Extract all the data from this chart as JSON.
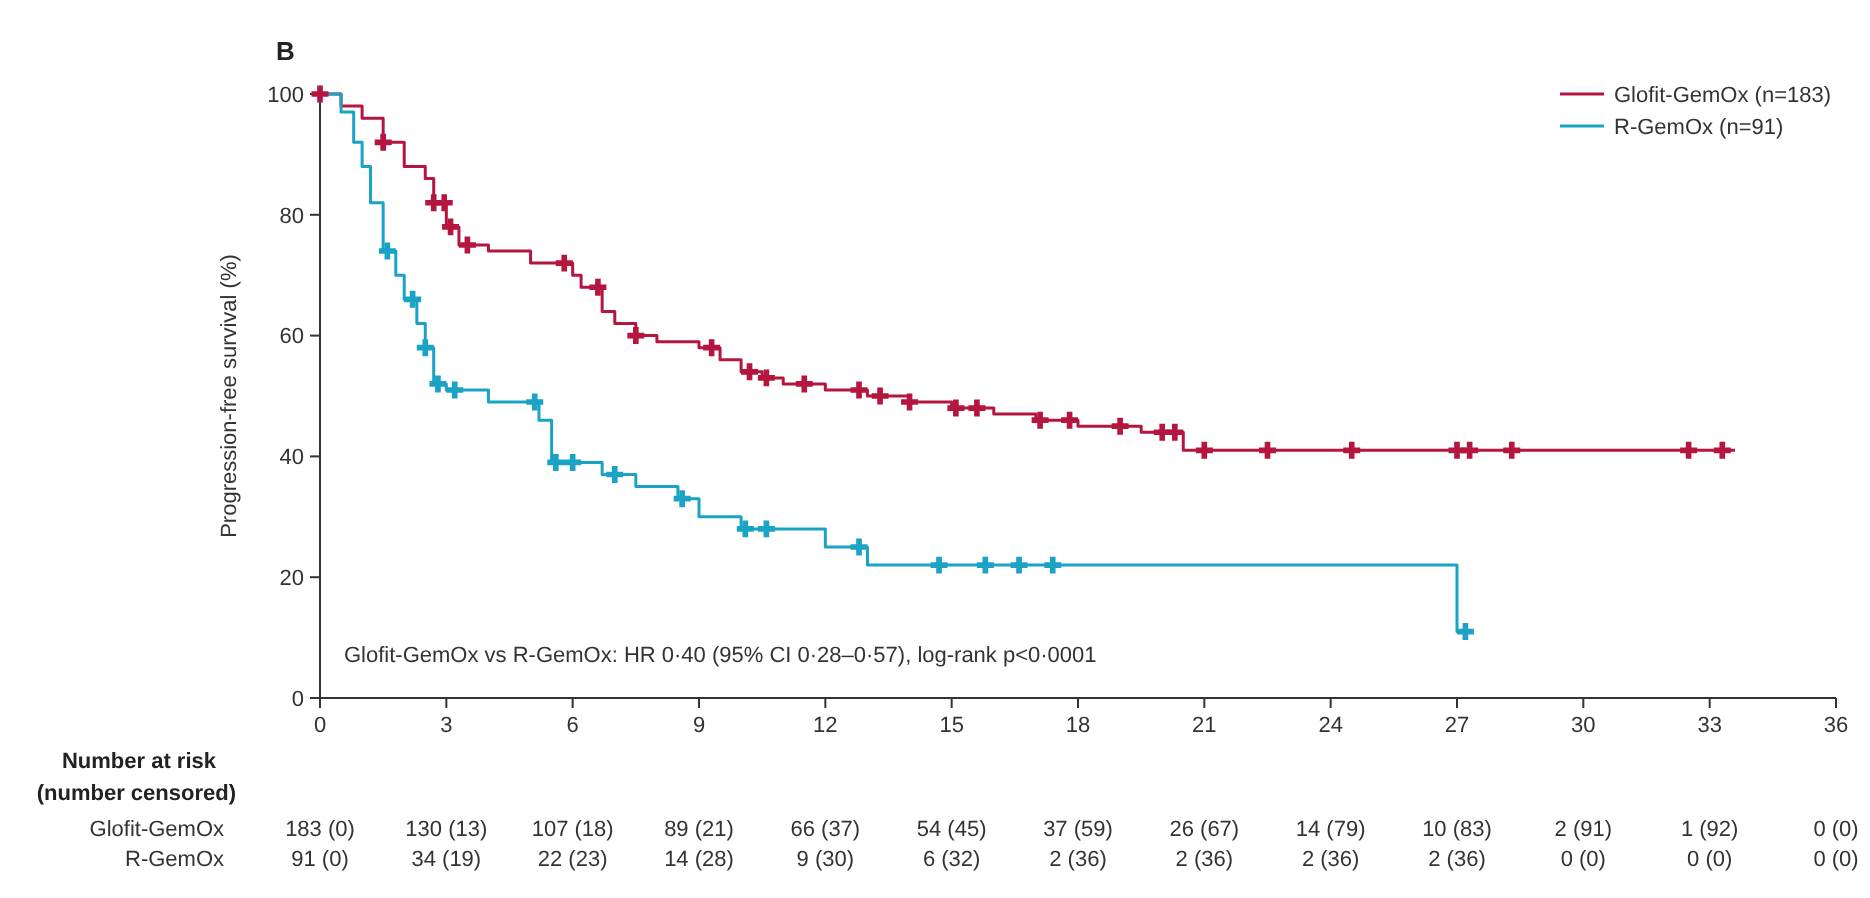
{
  "chart_data": {
    "type": "step",
    "title": "B",
    "ylabel": "Progression-free survival (%)",
    "xlim": [
      0,
      36
    ],
    "xticks": [
      0,
      3,
      6,
      9,
      12,
      15,
      18,
      21,
      24,
      27,
      30,
      33,
      36
    ],
    "ylim": [
      0,
      100
    ],
    "yticks": [
      0,
      20,
      40,
      60,
      80,
      100
    ],
    "grid": false,
    "legend": "top right",
    "line_style": "solid",
    "series": [
      {
        "name": "Glofit-GemOx (n=183)",
        "color": "#b5163f",
        "x": [
          0,
          0.5,
          1,
          1.5,
          2,
          2.5,
          2.7,
          3,
          3.3,
          4,
          5,
          6,
          6.2,
          6.7,
          7,
          7.5,
          8,
          9,
          9.5,
          10,
          10.5,
          11,
          12,
          13,
          14,
          15,
          16,
          17,
          18,
          19.5,
          20.5,
          33.6
        ],
        "values": [
          100,
          98,
          96,
          92,
          88,
          86,
          82,
          78,
          75,
          74,
          72,
          70,
          68,
          64,
          62,
          60,
          59,
          58,
          56,
          54,
          53,
          52,
          51,
          50,
          49,
          48,
          47,
          46,
          45,
          44,
          41,
          41
        ]
      },
      {
        "name": "R-GemOx (n=91)",
        "color": "#1aa3c4",
        "x": [
          0,
          0.5,
          0.8,
          1,
          1.2,
          1.5,
          1.8,
          2,
          2.3,
          2.5,
          2.7,
          3,
          4,
          5.2,
          5.5,
          6.7,
          7.5,
          8.5,
          9,
          10,
          12,
          13,
          27,
          27.2
        ],
        "values": [
          100,
          97,
          92,
          88,
          82,
          74,
          70,
          66,
          62,
          58,
          52,
          51,
          49,
          46,
          39,
          37,
          35,
          33,
          30,
          28,
          25,
          22,
          11,
          11
        ]
      },
      {
        "type": "scatter",
        "marker": "cross",
        "color": "#b5163f",
        "x": [
          0,
          1.5,
          2.7,
          2.95,
          3.1,
          3.5,
          5.8,
          6.6,
          7.5,
          9.3,
          10.2,
          10.6,
          11.5,
          12.8,
          13.3,
          14,
          15.1,
          15.6,
          17.1,
          17.8,
          19,
          20,
          20.3,
          21,
          22.5,
          24.5,
          27,
          27.3,
          28.3,
          32.5,
          33.3
        ],
        "values": [
          100,
          92,
          82,
          82,
          78,
          75,
          72,
          68,
          60,
          58,
          54,
          53,
          52,
          51,
          50,
          49,
          48,
          48,
          46,
          46,
          45,
          44,
          44,
          41,
          41,
          41,
          41,
          41,
          41,
          41,
          41
        ]
      },
      {
        "type": "scatter",
        "marker": "cross",
        "color": "#1aa3c4",
        "x": [
          1.6,
          2.2,
          2.5,
          2.8,
          3.2,
          5.1,
          5.6,
          6.0,
          7.0,
          8.6,
          10.1,
          10.6,
          12.8,
          14.7,
          15.8,
          16.6,
          17.4,
          27.2
        ],
        "values": [
          74,
          66,
          58,
          52,
          51,
          49,
          39,
          39,
          37,
          33,
          28,
          28,
          25,
          22,
          22,
          22,
          22,
          11
        ]
      }
    ],
    "annotations": [
      "Glofit-GemOx vs R-GemOx: HR 0·40 (95% CI 0·28–0·57), log-rank p<0·0001",
      "Number at risk",
      "(number censored)",
      "Glofit-GemOx",
      "183 (0)",
      "130 (13)",
      "107 (18)",
      "89 (21)",
      "66 (37)",
      "54 (45)",
      "37 (59)",
      "26 (67)",
      "14 (79)",
      "10 (83)",
      "2 (91)",
      "1 (92)",
      "0 (0)",
      "R-GemOx",
      "91 (0)",
      "34 (19)",
      "22 (23)",
      "14 (28)",
      "9 (30)",
      "6 (32)",
      "2 (36)",
      "2 (36)",
      "2 (36)",
      "2 (36)",
      "0 (0)",
      "0 (0)",
      "0 (0)"
    ]
  }
}
